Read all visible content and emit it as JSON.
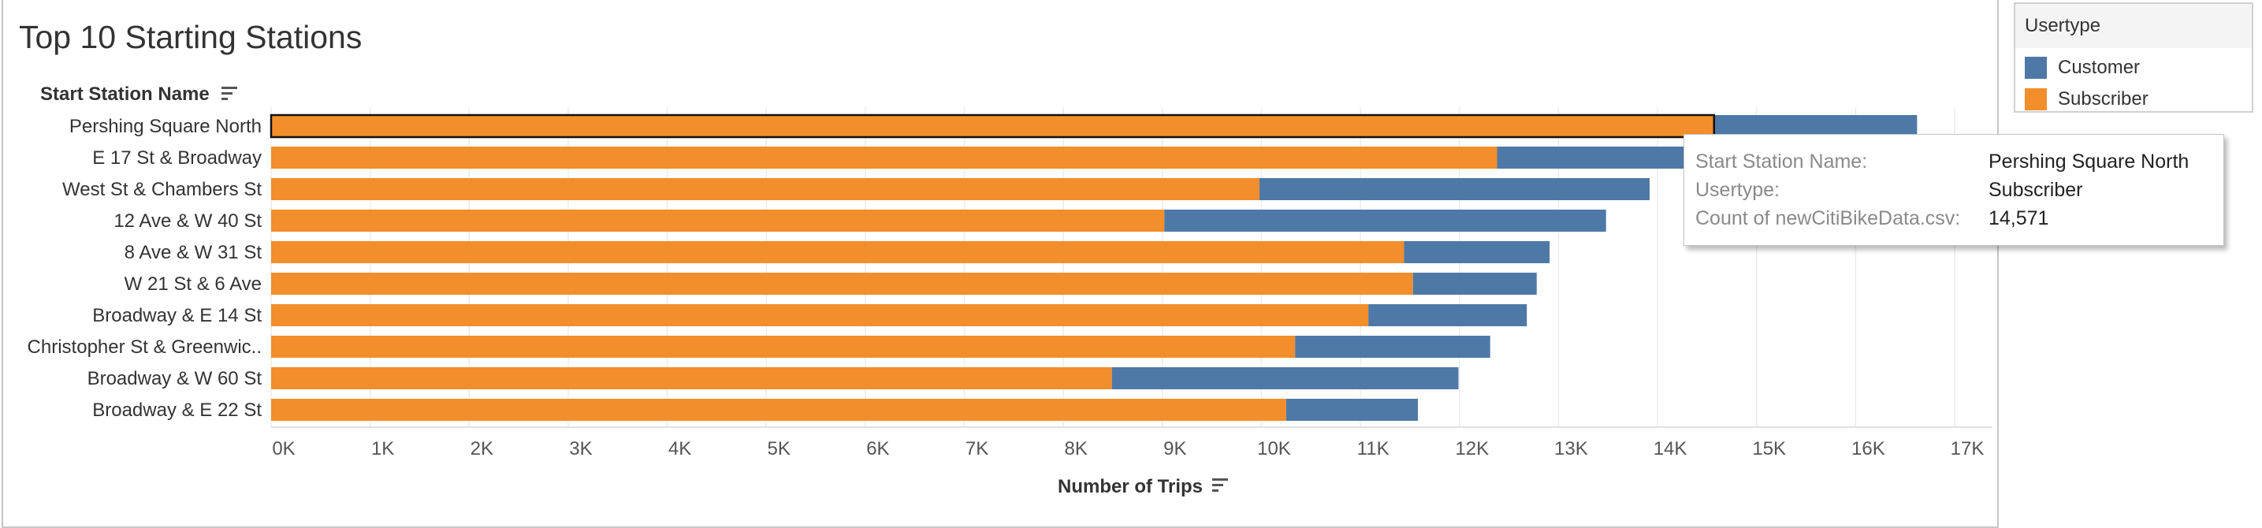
{
  "chart_data": {
    "type": "bar",
    "orientation": "horizontal",
    "stacked": true,
    "title": "Top 10 Starting Stations",
    "category_header": "Start Station Name",
    "xlabel": "Number of Trips",
    "xlim": [
      0,
      17500
    ],
    "x_ticks": [
      0,
      1000,
      2000,
      3000,
      4000,
      5000,
      6000,
      7000,
      8000,
      9000,
      10000,
      11000,
      12000,
      13000,
      14000,
      15000,
      16000,
      17000
    ],
    "x_tick_labels": [
      "0K",
      "1K",
      "2K",
      "3K",
      "4K",
      "5K",
      "6K",
      "7K",
      "8K",
      "9K",
      "10K",
      "11K",
      "12K",
      "13K",
      "14K",
      "15K",
      "16K",
      "17K"
    ],
    "grid": true,
    "categories": [
      "Pershing Square North",
      "E 17 St & Broadway",
      "West St & Chambers St",
      "12 Ave & W 40 St",
      "8 Ave & W 31 St",
      "W 21 St & 6 Ave",
      "Broadway & E 14 St",
      "Christopher St & Greenwic..",
      "Broadway & W 60 St",
      "Broadway & E 22 St"
    ],
    "series": [
      {
        "name": "Subscriber",
        "color": "#f28e2b",
        "values": [
          14571,
          12380,
          9980,
          9020,
          11440,
          11530,
          11080,
          10340,
          8490,
          10250
        ]
      },
      {
        "name": "Customer",
        "color": "#4e79a7",
        "values": [
          2050,
          2250,
          3940,
          4460,
          1470,
          1250,
          1600,
          1970,
          3500,
          1330
        ]
      }
    ],
    "highlighted": {
      "category": "Pershing Square North",
      "series": "Subscriber"
    },
    "legend": {
      "title": "Usertype",
      "position": "right",
      "items": [
        "Customer",
        "Subscriber"
      ]
    }
  },
  "colors": {
    "customer": "#4e79a7",
    "subscriber": "#f28e2b",
    "grid": "#ececec",
    "text": "#333333"
  },
  "tooltip": {
    "rows": [
      {
        "key": "Start Station Name:",
        "value": "Pershing Square North"
      },
      {
        "key": "Usertype:",
        "value": "Subscriber"
      },
      {
        "key": "Count of newCitiBikeData.csv:",
        "value": "14,571"
      }
    ]
  },
  "icons": {
    "sort": "sort-descending-icon"
  }
}
